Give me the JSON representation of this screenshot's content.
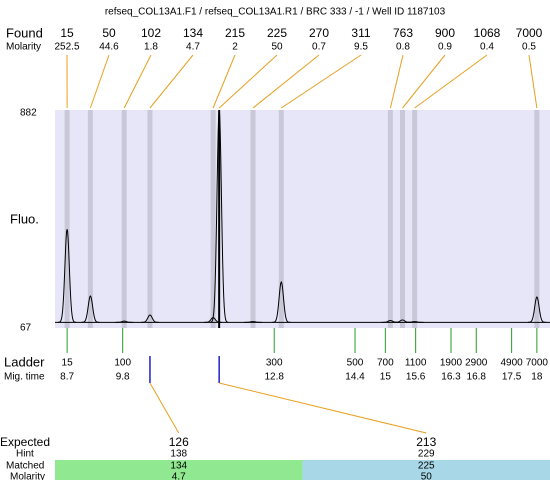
{
  "title": "refseq_COL13A1.F1 / refseq_COL13A1.R1 / BRC 333 / -1 / Well ID 1187103",
  "found": {
    "label": "Found",
    "molarity_label": "Molarity",
    "peaks": [
      {
        "size": 15,
        "molarity": 252.5,
        "time": 8.7,
        "height": 430
      },
      {
        "size": 50,
        "molarity": 44.6,
        "time": 9.16,
        "height": 177
      },
      {
        "size": 102,
        "molarity": 1.8,
        "time": 9.83,
        "height": 82
      },
      {
        "size": 134,
        "molarity": 4.7,
        "time": 10.34,
        "height": 105
      },
      {
        "size": 215,
        "molarity": 2,
        "time": 11.59,
        "height": 95
      },
      {
        "size": 225,
        "molarity": 50,
        "time": 11.71,
        "height": 882,
        "highlight": true
      },
      {
        "size": 270,
        "molarity": 0.7,
        "time": 12.38,
        "height": 80
      },
      {
        "size": 311,
        "molarity": 9.5,
        "time": 12.94,
        "height": 230
      },
      {
        "size": 763,
        "molarity": 0.8,
        "time": 15.1,
        "height": 84
      },
      {
        "size": 900,
        "molarity": 0.9,
        "time": 15.34,
        "height": 86
      },
      {
        "size": 1068,
        "molarity": 0.4,
        "time": 15.58,
        "height": 80
      },
      {
        "size": 7000,
        "molarity": 0.5,
        "time": 18.0,
        "height": 173
      }
    ]
  },
  "fluo": {
    "label": "Fluo.",
    "ylim": [
      67,
      882
    ],
    "yticks": [
      67,
      882
    ],
    "xlim": [
      8.46,
      18.26
    ],
    "baseline": 77
  },
  "ladder": {
    "label": "Ladder",
    "time_label": "Mig. time",
    "bands": [
      {
        "size": 15,
        "time": 8.7
      },
      {
        "size": 100,
        "time": 9.8
      },
      {
        "size": 300,
        "time": 12.8
      },
      {
        "size": 500,
        "time": 14.4
      },
      {
        "size": 700,
        "time": 15
      },
      {
        "size": 1100,
        "time": 15.6
      },
      {
        "size": 1900,
        "time": 16.3
      },
      {
        "size": 2900,
        "time": 16.8
      },
      {
        "size": 4900,
        "time": 17.5
      },
      {
        "size": 7000,
        "time": 18
      }
    ]
  },
  "expected": {
    "label": "Expected",
    "hint_label": "Hint",
    "matched_label": "Matched",
    "molarity_label": "Molarity",
    "items": [
      {
        "expected": 126,
        "hint": 138,
        "matched": 134,
        "molarity": 4.7,
        "color": "#90e890"
      },
      {
        "expected": 213,
        "hint": 229,
        "matched": 225,
        "molarity": 50,
        "color": "#a8d8e8"
      }
    ]
  }
}
